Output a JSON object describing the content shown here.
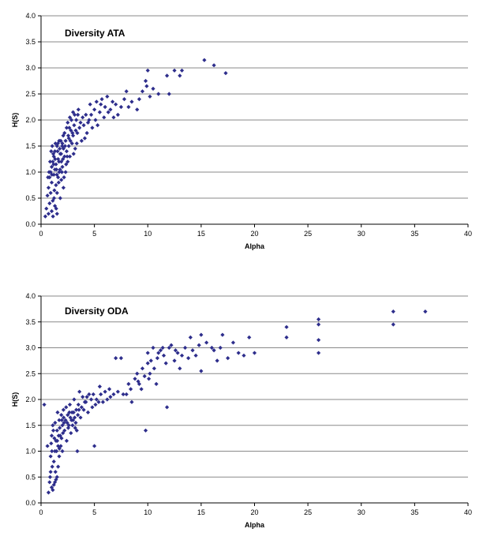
{
  "chart_data": [
    {
      "type": "scatter",
      "title": "Diversity ATA",
      "xlabel": "Alpha",
      "ylabel": "H(S)",
      "xlim": [
        0,
        40
      ],
      "ylim": [
        0,
        4.0
      ],
      "x_ticks": [
        "0",
        "5",
        "10",
        "15",
        "20",
        "25",
        "30",
        "35",
        "40"
      ],
      "y_ticks": [
        "0.0",
        "0.5",
        "1.0",
        "1.5",
        "2.0",
        "2.5",
        "3.0",
        "3.5",
        "4.0"
      ],
      "grid": "horizontal",
      "marker": "diamond",
      "color": "#2E2E8C",
      "points": [
        [
          0.4,
          0.15
        ],
        [
          0.5,
          0.3
        ],
        [
          0.6,
          0.55
        ],
        [
          0.7,
          0.7
        ],
        [
          0.7,
          0.2
        ],
        [
          0.8,
          0.9
        ],
        [
          0.8,
          0.4
        ],
        [
          0.9,
          1.0
        ],
        [
          0.9,
          0.6
        ],
        [
          1.0,
          1.1
        ],
        [
          1.0,
          0.25
        ],
        [
          1.0,
          0.8
        ],
        [
          1.1,
          1.2
        ],
        [
          1.1,
          0.45
        ],
        [
          1.2,
          1.3
        ],
        [
          1.2,
          0.95
        ],
        [
          1.3,
          1.05
        ],
        [
          1.3,
          0.35
        ],
        [
          1.3,
          1.4
        ],
        [
          1.4,
          0.75
        ],
        [
          1.4,
          1.15
        ],
        [
          1.5,
          1.5
        ],
        [
          1.5,
          0.6
        ],
        [
          1.5,
          0.2
        ],
        [
          1.6,
          1.25
        ],
        [
          1.6,
          0.9
        ],
        [
          1.7,
          1.6
        ],
        [
          1.7,
          1.0
        ],
        [
          1.8,
          1.35
        ],
        [
          1.8,
          0.5
        ],
        [
          1.9,
          1.2
        ],
        [
          1.9,
          0.85
        ],
        [
          2.0,
          1.55
        ],
        [
          2.0,
          1.1
        ],
        [
          2.1,
          1.45
        ],
        [
          2.1,
          0.7
        ],
        [
          2.2,
          1.3
        ],
        [
          2.2,
          1.75
        ],
        [
          2.3,
          1.0
        ],
        [
          2.3,
          1.6
        ],
        [
          2.4,
          1.85
        ],
        [
          2.4,
          1.4
        ],
        [
          2.5,
          1.2
        ],
        [
          2.5,
          1.95
        ],
        [
          2.6,
          1.65
        ],
        [
          2.6,
          1.5
        ],
        [
          2.7,
          2.05
        ],
        [
          2.7,
          1.3
        ],
        [
          2.8,
          1.8
        ],
        [
          2.9,
          1.55
        ],
        [
          3.0,
          2.15
        ],
        [
          3.0,
          1.7
        ],
        [
          3.1,
          1.9
        ],
        [
          3.2,
          1.45
        ],
        [
          3.3,
          2.0
        ],
        [
          3.4,
          1.75
        ],
        [
          3.5,
          2.2
        ],
        [
          3.6,
          1.85
        ],
        [
          3.8,
          1.6
        ],
        [
          3.9,
          2.05
        ],
        [
          4.0,
          1.9
        ],
        [
          4.2,
          2.1
        ],
        [
          4.3,
          1.75
        ],
        [
          4.5,
          2.0
        ],
        [
          4.6,
          2.3
        ],
        [
          4.8,
          1.85
        ],
        [
          5.0,
          2.2
        ],
        [
          5.1,
          2.0
        ],
        [
          5.2,
          2.35
        ],
        [
          5.5,
          2.15
        ],
        [
          5.7,
          2.4
        ],
        [
          5.9,
          2.05
        ],
        [
          6.0,
          2.25
        ],
        [
          6.2,
          2.45
        ],
        [
          6.5,
          2.2
        ],
        [
          6.8,
          2.05
        ],
        [
          7.0,
          2.3
        ],
        [
          7.5,
          2.25
        ],
        [
          7.8,
          2.4
        ],
        [
          8.0,
          2.55
        ],
        [
          8.5,
          2.35
        ],
        [
          9.0,
          2.2
        ],
        [
          9.5,
          2.55
        ],
        [
          9.8,
          2.75
        ],
        [
          10.0,
          2.95
        ],
        [
          10.2,
          2.45
        ],
        [
          11.0,
          2.5
        ],
        [
          11.8,
          2.85
        ],
        [
          12.0,
          2.5
        ],
        [
          12.5,
          2.95
        ],
        [
          13.0,
          2.85
        ],
        [
          13.2,
          2.95
        ],
        [
          15.3,
          3.15
        ],
        [
          16.2,
          3.05
        ],
        [
          17.3,
          2.9
        ],
        [
          1.05,
          1.5
        ],
        [
          1.15,
          1.35
        ],
        [
          1.25,
          0.65
        ],
        [
          1.35,
          1.55
        ],
        [
          1.45,
          1.05
        ],
        [
          1.55,
          1.4
        ],
        [
          1.65,
          0.8
        ],
        [
          1.75,
          1.45
        ],
        [
          1.85,
          1.6
        ],
        [
          1.95,
          1.0
        ],
        [
          2.05,
          1.25
        ],
        [
          0.85,
          1.2
        ],
        [
          0.95,
          1.4
        ],
        [
          0.75,
          1.0
        ],
        [
          0.65,
          0.9
        ],
        [
          1.12,
          0.15
        ],
        [
          1.22,
          0.5
        ],
        [
          1.42,
          0.3
        ],
        [
          2.15,
          0.9
        ],
        [
          2.35,
          1.15
        ],
        [
          2.55,
          1.7
        ],
        [
          2.75,
          1.6
        ],
        [
          2.85,
          2.0
        ],
        [
          3.05,
          1.35
        ],
        [
          3.15,
          2.1
        ],
        [
          3.35,
          1.55
        ],
        [
          3.45,
          2.1
        ],
        [
          3.7,
          1.95
        ],
        [
          4.1,
          1.65
        ],
        [
          4.4,
          1.95
        ],
        [
          4.7,
          2.1
        ],
        [
          5.3,
          1.9
        ],
        [
          5.6,
          2.3
        ],
        [
          6.3,
          2.15
        ],
        [
          6.7,
          2.35
        ],
        [
          7.2,
          2.1
        ],
        [
          8.2,
          2.25
        ],
        [
          9.2,
          2.4
        ],
        [
          9.9,
          2.65
        ],
        [
          10.5,
          2.6
        ],
        [
          1.02,
          0.95
        ],
        [
          1.18,
          1.15
        ],
        [
          1.32,
          1.25
        ],
        [
          1.48,
          0.95
        ],
        [
          1.58,
          1.55
        ],
        [
          1.68,
          1.2
        ],
        [
          1.78,
          1.05
        ],
        [
          1.88,
          1.35
        ],
        [
          1.98,
          1.5
        ],
        [
          2.08,
          1.7
        ],
        [
          2.25,
          1.5
        ],
        [
          2.45,
          1.3
        ],
        [
          2.65,
          1.85
        ],
        [
          2.95,
          1.75
        ],
        [
          3.25,
          1.8
        ]
      ]
    },
    {
      "type": "scatter",
      "title": "Diversity ODA",
      "xlabel": "Alpha",
      "ylabel": "H(S)",
      "xlim": [
        0,
        40
      ],
      "ylim": [
        0,
        4.0
      ],
      "x_ticks": [
        "0",
        "5",
        "10",
        "15",
        "20",
        "25",
        "30",
        "35",
        "40"
      ],
      "y_ticks": [
        "0.0",
        "0.5",
        "1.0",
        "1.5",
        "2.0",
        "2.5",
        "3.0",
        "3.5",
        "4.0"
      ],
      "grid": "horizontal",
      "marker": "diamond",
      "color": "#2E2E8C",
      "points": [
        [
          0.3,
          1.9
        ],
        [
          0.6,
          1.1
        ],
        [
          0.7,
          0.2
        ],
        [
          0.8,
          0.4
        ],
        [
          0.9,
          0.6
        ],
        [
          1.0,
          1.3
        ],
        [
          1.0,
          0.3
        ],
        [
          1.1,
          1.5
        ],
        [
          1.2,
          0.8
        ],
        [
          1.3,
          1.0
        ],
        [
          1.3,
          0.4
        ],
        [
          1.4,
          1.2
        ],
        [
          1.5,
          1.4
        ],
        [
          1.5,
          0.5
        ],
        [
          1.6,
          1.1
        ],
        [
          1.7,
          1.6
        ],
        [
          1.7,
          0.9
        ],
        [
          1.8,
          1.3
        ],
        [
          1.9,
          1.7
        ],
        [
          2.0,
          1.5
        ],
        [
          2.0,
          1.0
        ],
        [
          2.1,
          1.8
        ],
        [
          2.2,
          1.4
        ],
        [
          2.3,
          1.6
        ],
        [
          2.4,
          1.2
        ],
        [
          2.5,
          1.7
        ],
        [
          2.6,
          1.5
        ],
        [
          2.7,
          1.9
        ],
        [
          2.8,
          1.35
        ],
        [
          2.9,
          1.75
        ],
        [
          3.0,
          1.6
        ],
        [
          3.1,
          2.0
        ],
        [
          3.2,
          1.45
        ],
        [
          3.3,
          1.8
        ],
        [
          3.4,
          1.0
        ],
        [
          3.5,
          1.9
        ],
        [
          3.7,
          1.65
        ],
        [
          3.9,
          2.05
        ],
        [
          4.0,
          1.8
        ],
        [
          4.2,
          1.95
        ],
        [
          4.5,
          2.1
        ],
        [
          4.8,
          1.85
        ],
        [
          5.0,
          1.1
        ],
        [
          5.2,
          2.0
        ],
        [
          5.5,
          2.25
        ],
        [
          5.8,
          1.95
        ],
        [
          6.0,
          2.15
        ],
        [
          6.5,
          2.05
        ],
        [
          7.0,
          2.8
        ],
        [
          7.5,
          2.8
        ],
        [
          8.0,
          2.1
        ],
        [
          8.5,
          1.95
        ],
        [
          9.0,
          2.5
        ],
        [
          9.2,
          2.3
        ],
        [
          9.5,
          2.6
        ],
        [
          9.8,
          1.4
        ],
        [
          10.0,
          2.7
        ],
        [
          10.0,
          2.9
        ],
        [
          10.2,
          2.5
        ],
        [
          10.5,
          3.0
        ],
        [
          10.8,
          2.3
        ],
        [
          11.0,
          2.9
        ],
        [
          11.5,
          2.85
        ],
        [
          11.8,
          1.85
        ],
        [
          12.0,
          3.0
        ],
        [
          12.5,
          2.75
        ],
        [
          13.0,
          2.6
        ],
        [
          13.5,
          3.0
        ],
        [
          14.0,
          3.2
        ],
        [
          14.5,
          2.85
        ],
        [
          15.0,
          3.25
        ],
        [
          15.0,
          2.55
        ],
        [
          16.0,
          3.0
        ],
        [
          16.2,
          2.95
        ],
        [
          17.0,
          3.25
        ],
        [
          18.0,
          3.1
        ],
        [
          19.0,
          2.85
        ],
        [
          19.5,
          3.2
        ],
        [
          20.0,
          2.9
        ],
        [
          23.0,
          3.4
        ],
        [
          23.0,
          3.2
        ],
        [
          26.0,
          3.55
        ],
        [
          26.0,
          3.45
        ],
        [
          26.0,
          3.15
        ],
        [
          26.0,
          2.9
        ],
        [
          33.0,
          3.7
        ],
        [
          33.0,
          3.45
        ],
        [
          36.0,
          3.7
        ],
        [
          1.05,
          0.7
        ],
        [
          1.15,
          1.4
        ],
        [
          1.25,
          1.25
        ],
        [
          1.35,
          0.6
        ],
        [
          1.45,
          1.0
        ],
        [
          1.55,
          1.75
        ],
        [
          1.65,
          1.3
        ],
        [
          1.75,
          1.45
        ],
        [
          1.85,
          1.1
        ],
        [
          1.95,
          1.6
        ],
        [
          2.05,
          1.35
        ],
        [
          0.9,
          0.9
        ],
        [
          0.95,
          1.15
        ],
        [
          0.85,
          0.5
        ],
        [
          1.1,
          0.25
        ],
        [
          1.2,
          0.35
        ],
        [
          1.4,
          0.45
        ],
        [
          1.6,
          0.7
        ],
        [
          2.15,
          1.55
        ],
        [
          2.35,
          1.85
        ],
        [
          2.55,
          1.45
        ],
        [
          2.75,
          1.65
        ],
        [
          2.95,
          1.5
        ],
        [
          3.05,
          1.75
        ],
        [
          3.25,
          1.55
        ],
        [
          3.45,
          1.7
        ],
        [
          3.6,
          2.15
        ],
        [
          3.8,
          1.85
        ],
        [
          4.1,
          1.95
        ],
        [
          4.4,
          1.75
        ],
        [
          4.7,
          2.0
        ],
        [
          5.1,
          1.9
        ],
        [
          5.4,
          1.95
        ],
        [
          6.2,
          2.0
        ],
        [
          6.8,
          2.1
        ],
        [
          7.2,
          2.15
        ],
        [
          8.2,
          2.3
        ],
        [
          8.8,
          2.4
        ],
        [
          9.4,
          2.2
        ],
        [
          9.7,
          2.45
        ],
        [
          10.3,
          2.75
        ],
        [
          10.6,
          2.6
        ],
        [
          11.2,
          2.95
        ],
        [
          11.7,
          2.7
        ],
        [
          12.2,
          3.05
        ],
        [
          12.8,
          2.9
        ],
        [
          13.2,
          2.85
        ],
        [
          14.2,
          2.95
        ],
        [
          15.5,
          3.1
        ],
        [
          16.5,
          2.75
        ],
        [
          17.5,
          2.8
        ],
        [
          1.02,
          1.0
        ],
        [
          1.32,
          1.55
        ],
        [
          1.52,
          1.2
        ],
        [
          1.72,
          1.05
        ],
        [
          1.92,
          1.25
        ],
        [
          2.12,
          1.65
        ],
        [
          2.45,
          1.55
        ],
        [
          2.65,
          1.75
        ],
        [
          2.85,
          1.6
        ],
        [
          3.15,
          1.65
        ],
        [
          3.35,
          1.4
        ],
        [
          3.55,
          1.8
        ],
        [
          4.3,
          2.05
        ],
        [
          4.9,
          2.1
        ],
        [
          5.6,
          2.1
        ],
        [
          6.4,
          2.2
        ],
        [
          7.7,
          2.1
        ],
        [
          8.4,
          2.2
        ],
        [
          9.1,
          2.35
        ],
        [
          10.1,
          2.4
        ],
        [
          10.9,
          2.8
        ],
        [
          11.4,
          3.0
        ],
        [
          12.6,
          2.95
        ],
        [
          13.8,
          2.8
        ],
        [
          14.8,
          3.05
        ],
        [
          16.8,
          3.0
        ],
        [
          18.5,
          2.9
        ]
      ]
    }
  ]
}
